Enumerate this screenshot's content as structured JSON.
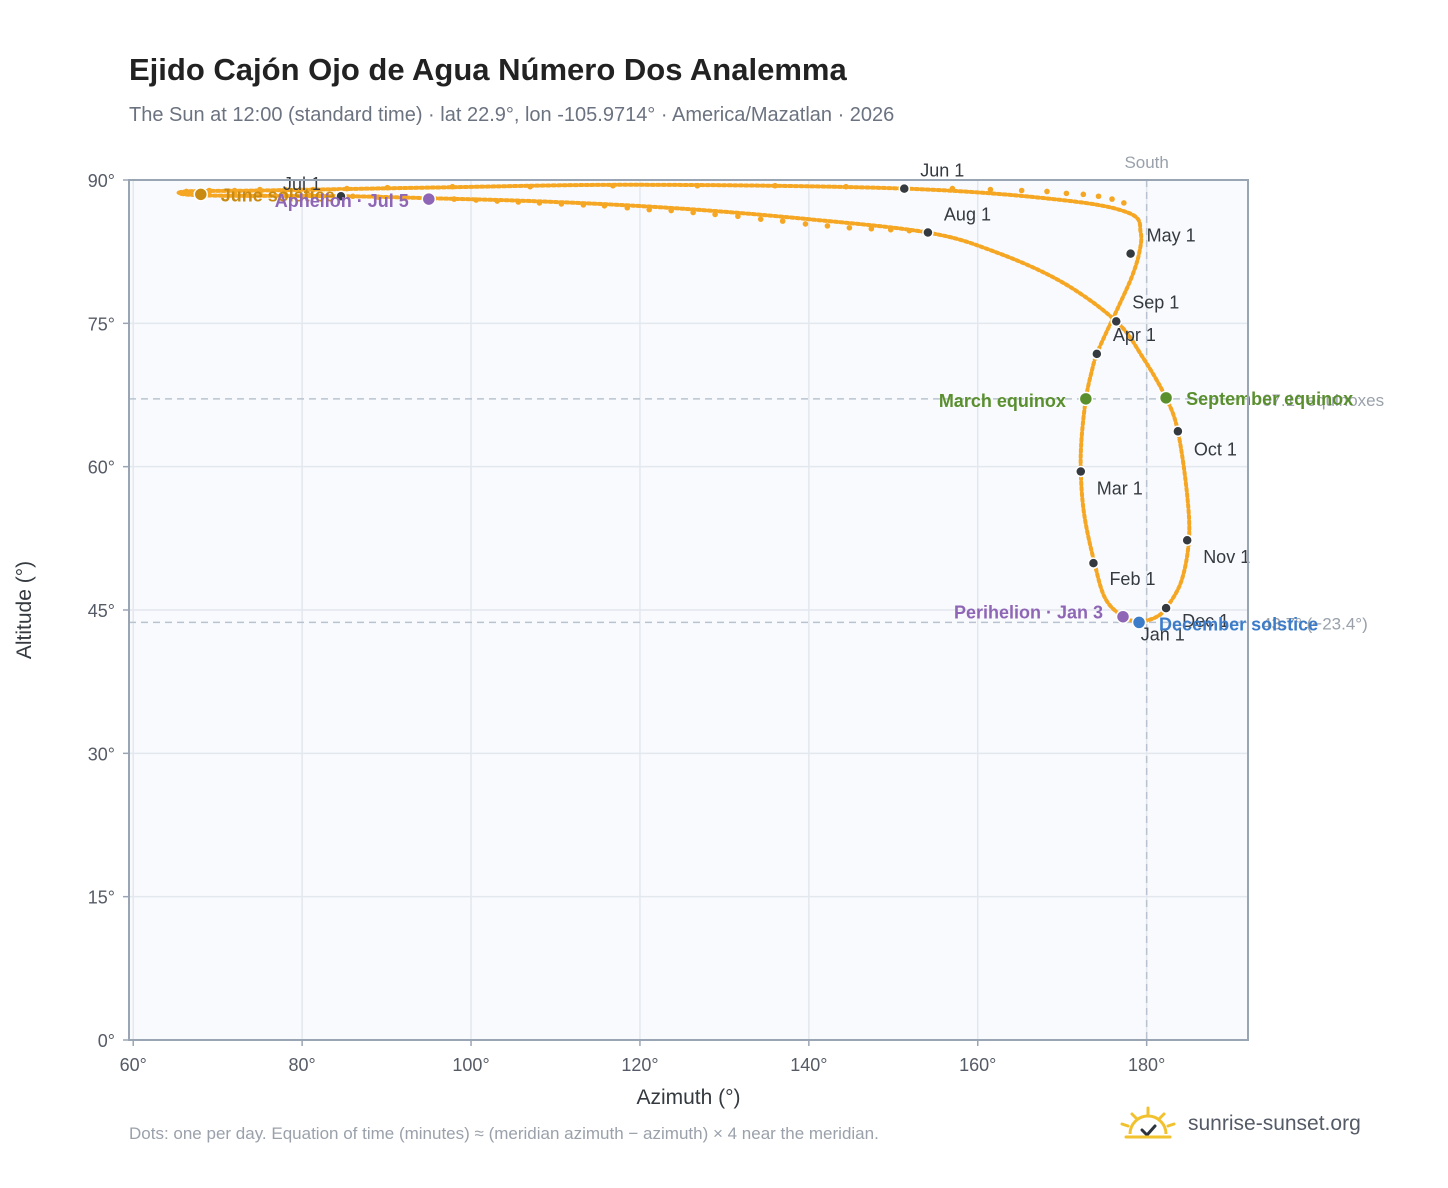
{
  "header": {
    "title": "Ejido Cajón Ojo de Agua Número Dos Analemma",
    "subtitle": "The Sun at 12:00 (standard time) · lat 22.9°, lon -105.9714° · America/Mazatlan · 2026"
  },
  "footer": {
    "note": "Dots: one per day. Equation of time (minutes) ≈ (meridian azimuth − azimuth) × 4 near the meridian.",
    "brand": "sunrise-sunset.org"
  },
  "colors": {
    "curve": "#f5a623",
    "month": "#343a40",
    "june": "#c98a12",
    "aphelion": "#8e66b5",
    "equinox": "#5a8f2e",
    "december": "#3d7cc9",
    "grid": "#e3e8ee",
    "frame": "#9aa5b4",
    "plotbg": "#f8fafd",
    "ref": "#b9c3cf"
  },
  "chart_data": {
    "type": "scatter",
    "title": "Ejido Cajón Ojo de Agua Número Dos Analemma",
    "xlabel": "Azimuth (°)",
    "ylabel": "Altitude (°)",
    "xlim": [
      59.5,
      192
    ],
    "ylim": [
      0,
      90
    ],
    "xticks": [
      60,
      80,
      100,
      120,
      140,
      160,
      180
    ],
    "yticks": [
      0,
      15,
      30,
      45,
      60,
      75,
      90
    ],
    "x_tick_labels": [
      "60°",
      "80°",
      "100°",
      "120°",
      "140°",
      "160°",
      "180°"
    ],
    "y_tick_labels": [
      "0°",
      "15°",
      "30°",
      "45°",
      "60°",
      "75°",
      "90°"
    ],
    "grid": true,
    "meridian": {
      "azimuth": 180,
      "label": "South"
    },
    "reference_lines": [
      {
        "altitude": 67.1,
        "label": "67.1° equinoxes"
      },
      {
        "altitude": 43.7,
        "label": "43.7° (−23.4°)"
      }
    ],
    "curve_vertices": [
      [
        179.1,
        43.7
      ],
      [
        177.2,
        44.3
      ],
      [
        175.1,
        46.2
      ],
      [
        173.8,
        50.0
      ],
      [
        172.6,
        55.0
      ],
      [
        172.2,
        59.5
      ],
      [
        172.3,
        63.0
      ],
      [
        172.8,
        67.1
      ],
      [
        173.5,
        70.0
      ],
      [
        174.1,
        71.8
      ],
      [
        175.2,
        74.0
      ],
      [
        176.8,
        77.0
      ],
      [
        178.3,
        80.0
      ],
      [
        179.1,
        82.3
      ],
      [
        179.3,
        84.5
      ],
      [
        178.0,
        86.5
      ],
      [
        170.0,
        87.9
      ],
      [
        151.3,
        89.1
      ],
      [
        120.0,
        89.5
      ],
      [
        95.0,
        89.2
      ],
      [
        75.0,
        88.9
      ],
      [
        66.1,
        88.8
      ],
      [
        68.0,
        88.4
      ],
      [
        84.8,
        88.3
      ],
      [
        95.0,
        88.1
      ],
      [
        110.0,
        87.7
      ],
      [
        125.0,
        87.0
      ],
      [
        140.0,
        85.9
      ],
      [
        154.1,
        84.5
      ],
      [
        162.0,
        82.5
      ],
      [
        170.0,
        79.3
      ],
      [
        176.4,
        75.2
      ],
      [
        179.5,
        71.5
      ],
      [
        182.3,
        67.2
      ],
      [
        183.7,
        63.7
      ],
      [
        184.8,
        57.0
      ],
      [
        185.0,
        52.3
      ],
      [
        184.1,
        48.0
      ],
      [
        182.3,
        45.2
      ],
      [
        181.0,
        44.2
      ],
      [
        179.1,
        43.7
      ]
    ],
    "daily_dots_sparse": [
      [
        66.3,
        88.8
      ],
      [
        69.0,
        88.9
      ],
      [
        72.0,
        88.9
      ],
      [
        75.0,
        89.0
      ],
      [
        78.0,
        89.0
      ],
      [
        81.3,
        89.0
      ],
      [
        85.3,
        89.1
      ],
      [
        90.1,
        89.2
      ],
      [
        97.8,
        89.3
      ],
      [
        107.0,
        89.3
      ],
      [
        116.8,
        89.4
      ],
      [
        126.8,
        89.4
      ],
      [
        136.0,
        89.4
      ],
      [
        144.4,
        89.3
      ],
      [
        151.3,
        89.1
      ],
      [
        157.0,
        89.1
      ],
      [
        161.5,
        89.0
      ],
      [
        165.2,
        88.9
      ],
      [
        168.2,
        88.8
      ],
      [
        69.0,
        88.8
      ],
      [
        72.0,
        88.7
      ],
      [
        75.0,
        88.6
      ],
      [
        78.0,
        88.5
      ],
      [
        81.0,
        88.4
      ],
      [
        86.0,
        88.3
      ],
      [
        89.0,
        88.2
      ],
      [
        92.0,
        88.1
      ],
      [
        98.0,
        88.0
      ],
      [
        100.6,
        87.9
      ],
      [
        103.1,
        87.8
      ],
      [
        105.6,
        87.7
      ],
      [
        108.1,
        87.6
      ],
      [
        110.7,
        87.5
      ],
      [
        113.3,
        87.4
      ],
      [
        115.8,
        87.3
      ],
      [
        118.5,
        87.1
      ],
      [
        121.1,
        86.9
      ],
      [
        123.7,
        86.8
      ],
      [
        126.3,
        86.6
      ],
      [
        128.9,
        86.4
      ],
      [
        131.6,
        86.2
      ],
      [
        134.3,
        85.9
      ],
      [
        136.9,
        85.7
      ],
      [
        139.6,
        85.4
      ],
      [
        142.2,
        85.2
      ],
      [
        144.8,
        85.0
      ],
      [
        147.4,
        84.9
      ],
      [
        149.7,
        84.8
      ],
      [
        151.9,
        84.7
      ],
      [
        170.5,
        88.6
      ],
      [
        172.5,
        88.5
      ],
      [
        174.3,
        88.3
      ],
      [
        175.9,
        88.0
      ],
      [
        177.3,
        87.6
      ]
    ],
    "month_markers": [
      {
        "label": "Jan 1",
        "azimuth": 179.3,
        "altitude": 43.7
      },
      {
        "label": "Feb 1",
        "azimuth": 173.7,
        "altitude": 49.9
      },
      {
        "label": "Mar 1",
        "azimuth": 172.2,
        "altitude": 59.5
      },
      {
        "label": "Apr 1",
        "azimuth": 174.1,
        "altitude": 71.8
      },
      {
        "label": "May 1",
        "azimuth": 178.1,
        "altitude": 82.3
      },
      {
        "label": "Jun 1",
        "azimuth": 151.3,
        "altitude": 89.1
      },
      {
        "label": "Jul 1",
        "azimuth": 84.6,
        "altitude": 88.3
      },
      {
        "label": "Aug 1",
        "azimuth": 154.1,
        "altitude": 84.5
      },
      {
        "label": "Sep 1",
        "azimuth": 176.4,
        "altitude": 75.2
      },
      {
        "label": "Oct 1",
        "azimuth": 183.7,
        "altitude": 63.7
      },
      {
        "label": "Nov 1",
        "azimuth": 184.8,
        "altitude": 52.3
      },
      {
        "label": "Dec 1",
        "azimuth": 182.3,
        "altitude": 45.2
      }
    ],
    "events": [
      {
        "label": "June solstice",
        "azimuth": 68.0,
        "altitude": 88.5,
        "color": "#c98a12"
      },
      {
        "label": "Aphelion · Jul 5",
        "azimuth": 95.0,
        "altitude": 88.0,
        "color": "#8e66b5"
      },
      {
        "label": "March equinox",
        "azimuth": 172.8,
        "altitude": 67.1,
        "color": "#5a8f2e"
      },
      {
        "label": "September equinox",
        "azimuth": 182.3,
        "altitude": 67.2,
        "color": "#5a8f2e"
      },
      {
        "label": "Perihelion · Jan 3",
        "azimuth": 177.2,
        "altitude": 44.3,
        "color": "#8e66b5"
      },
      {
        "label": "December solstice",
        "azimuth": 179.1,
        "altitude": 43.7,
        "color": "#3d7cc9"
      }
    ]
  }
}
